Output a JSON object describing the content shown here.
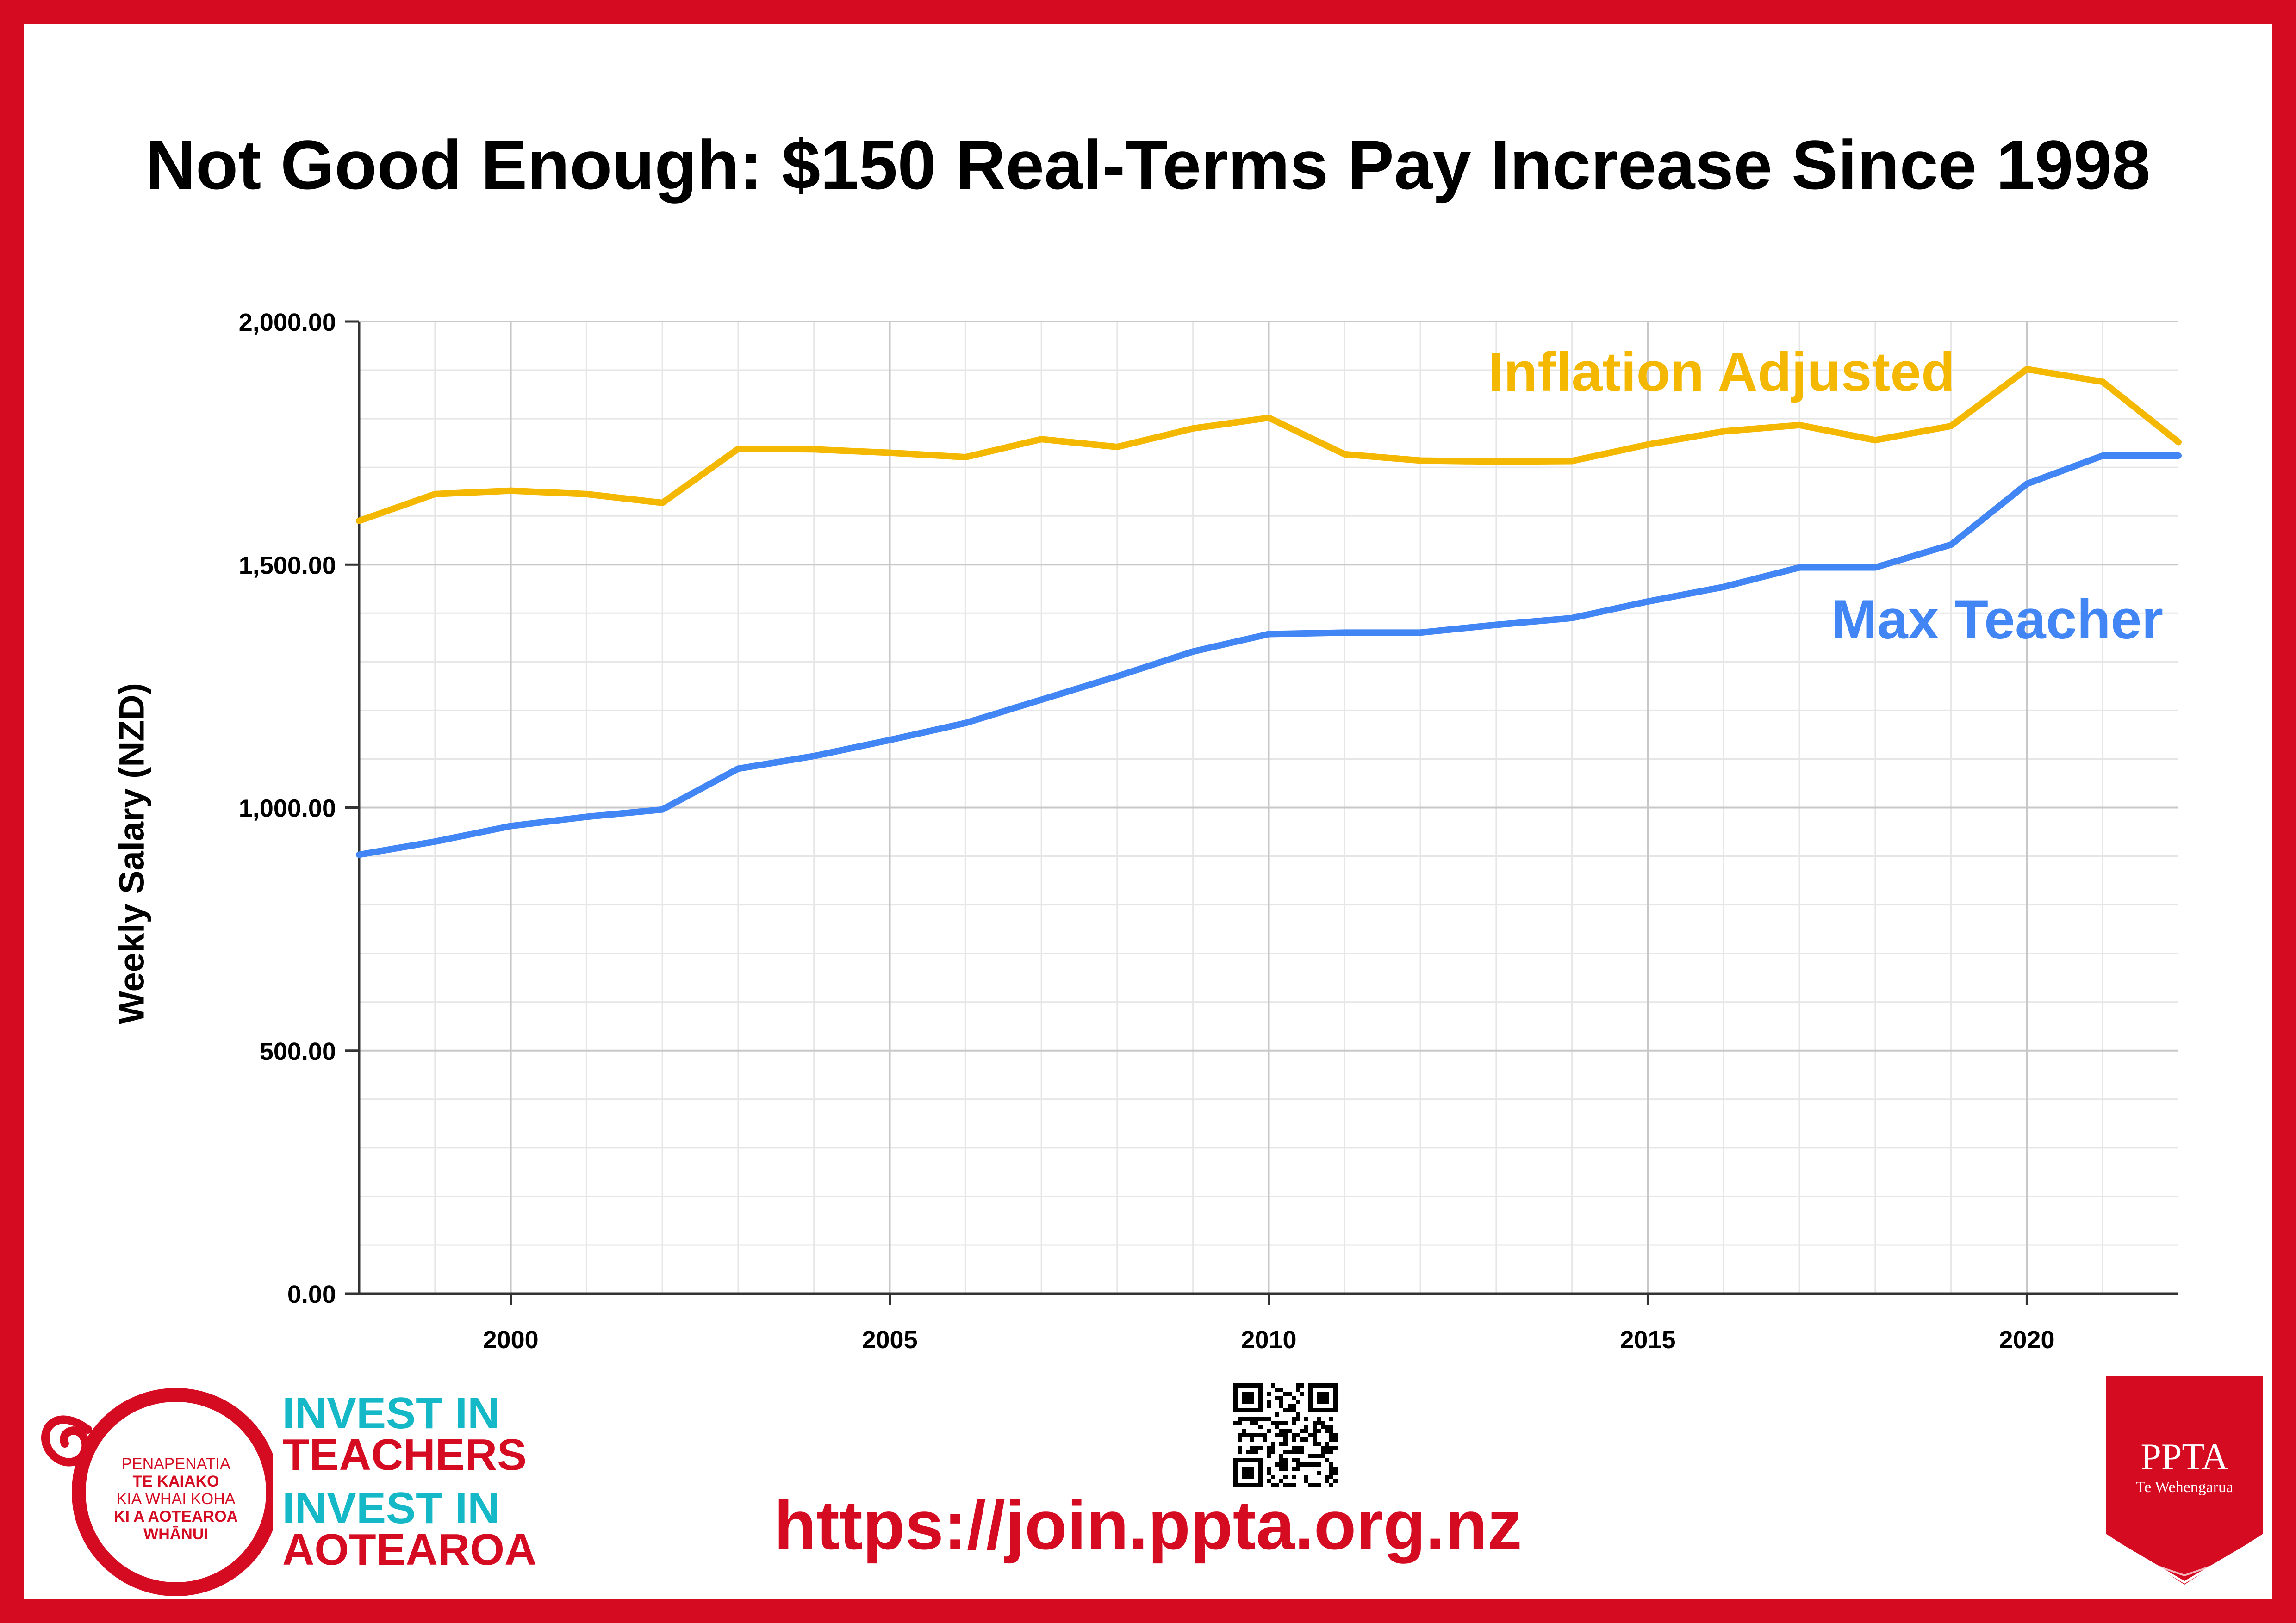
{
  "title": "Not Good Enough: $150 Real-Terms Pay Increase Since 1998",
  "colors": {
    "brand_red": "#d50b22",
    "teal": "#15b8c6",
    "inflation_line": "#f5b800",
    "teacher_line": "#4285f4",
    "grid_major": "#c8c8c8",
    "grid_minor": "#e6e6e6"
  },
  "chart_data": {
    "type": "line",
    "title": "Not Good Enough: $150 Real-Terms Pay Increase Since 1998",
    "xlabel": "",
    "ylabel": "Weekly Salary (NZD)",
    "xlim": [
      1998,
      2022
    ],
    "ylim": [
      0,
      2000
    ],
    "grid": true,
    "y_ticks": [
      0,
      500,
      1000,
      1500,
      2000
    ],
    "y_tick_labels": [
      "0.00",
      "500.00",
      "1,000.00",
      "1,500.00",
      "2,000.00"
    ],
    "x_ticks": [
      2000,
      2005,
      2010,
      2015,
      2020
    ],
    "x_tick_labels": [
      "2000",
      "2005",
      "2010",
      "2015",
      "2020"
    ],
    "x": [
      1998,
      1999,
      2000,
      2001,
      2002,
      2003,
      2004,
      2005,
      2006,
      2007,
      2008,
      2009,
      2010,
      2011,
      2012,
      2013,
      2014,
      2015,
      2016,
      2017,
      2018,
      2019,
      2020,
      2021,
      2022
    ],
    "series": [
      {
        "name": "Inflation Adjusted",
        "color": "#f5b800",
        "values": [
          1590,
          1645,
          1652,
          1645,
          1627,
          1738,
          1737,
          1730,
          1721,
          1758,
          1742,
          1780,
          1802,
          1727,
          1714,
          1712,
          1713,
          1747,
          1774,
          1787,
          1756,
          1785,
          1902,
          1876,
          1752
        ]
      },
      {
        "name": "Max Teacher",
        "color": "#4285f4",
        "values": [
          903,
          930,
          962,
          981,
          996,
          1080,
          1106,
          1139,
          1174,
          1222,
          1270,
          1321,
          1357,
          1360,
          1360,
          1376,
          1390,
          1424,
          1454,
          1494,
          1494,
          1541,
          1666,
          1724,
          1724
        ]
      }
    ]
  },
  "footer": {
    "logo_text": [
      "PENAPENATIA",
      "TE KAIAKO",
      "KIA WHAI KOHA",
      "KI A AOTEAROA",
      "WHĀNUI"
    ],
    "campaign": [
      "INVEST IN",
      "TEACHERS",
      "INVEST IN",
      "AOTEAROA"
    ],
    "url": "https://join.ppta.org.nz",
    "ppta_name": "PPTA",
    "ppta_subtitle": "Te Wehengarua"
  }
}
